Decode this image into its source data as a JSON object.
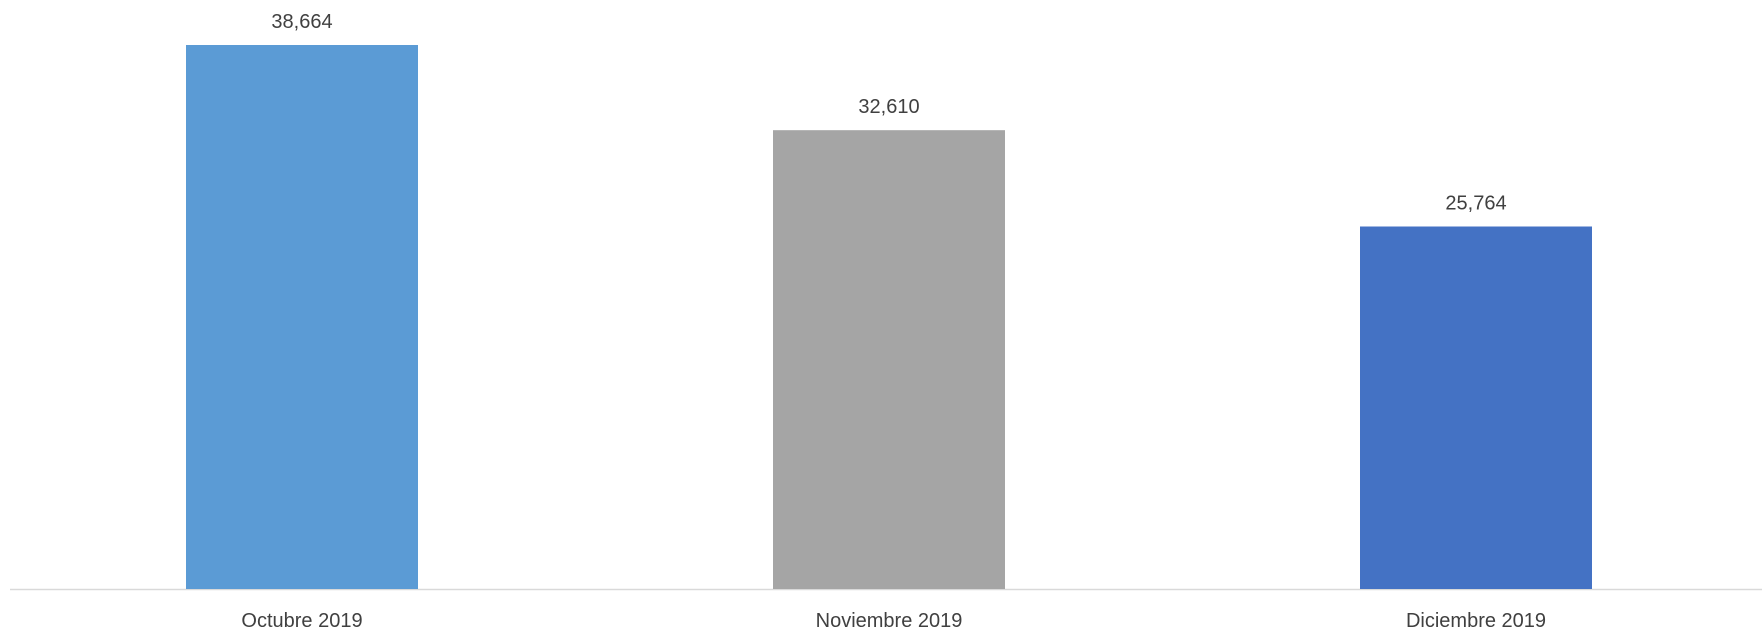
{
  "chart_data": {
    "type": "bar",
    "categories": [
      "Octubre 2019",
      "Noviembre 2019",
      "Diciembre 2019"
    ],
    "values": [
      38664,
      32610,
      25764
    ],
    "data_labels": [
      "38,664",
      "32,610",
      "25,764"
    ],
    "bar_colors": [
      "#5B9BD5",
      "#A5A5A5",
      "#4472C4"
    ],
    "axis_color": "#D9D9D9",
    "ylim": [
      0,
      38664
    ],
    "grid": false,
    "legend": "none",
    "title": "",
    "xlabel": "",
    "ylabel": ""
  }
}
